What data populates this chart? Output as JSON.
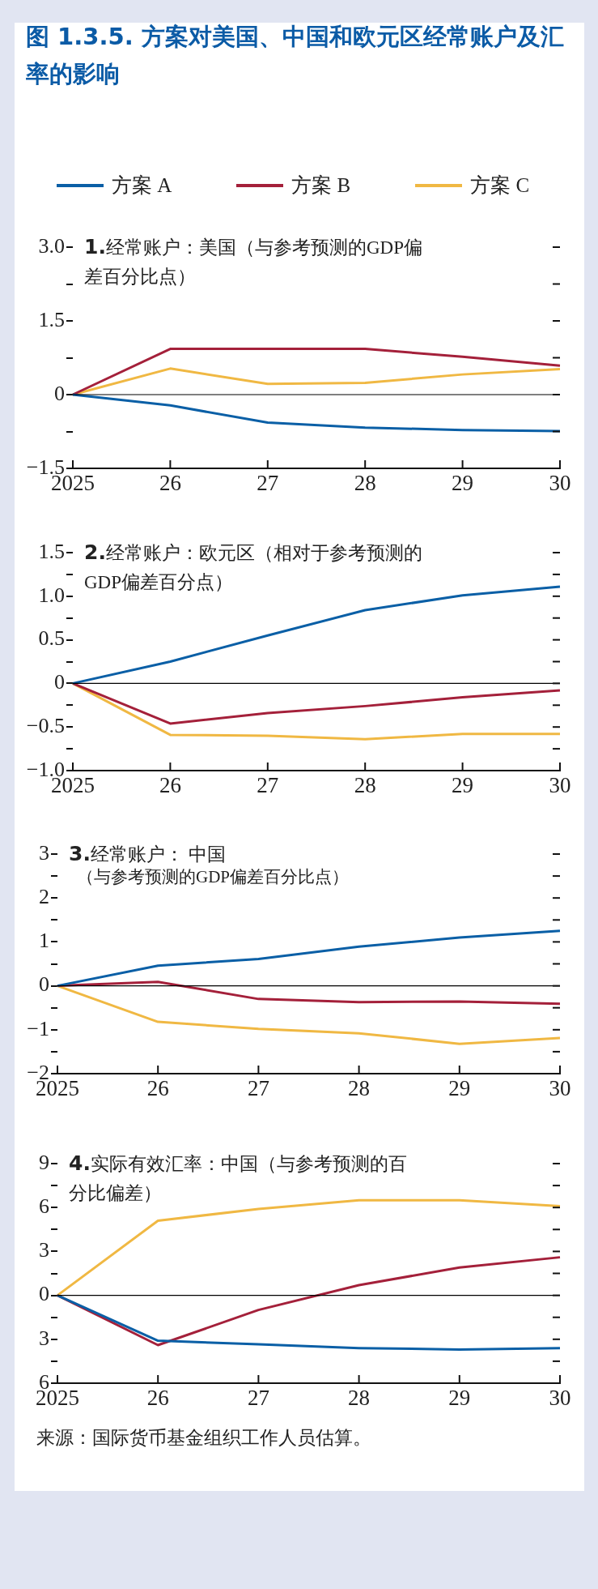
{
  "chart_data": [
    {
      "type": "line",
      "title": "图 1.3.5. 方案对美国、中国和欧元区经常账户及汇率的影响",
      "subtitle": "1.经常账户：美国（与参考预测的GDP偏差百分比点）",
      "legend": "top",
      "grid": false,
      "marker": "none",
      "line_style": "solid",
      "categories": [
        "2025",
        "26",
        "27",
        "28",
        "29",
        "30"
      ],
      "series": [
        {
          "name": "方案 A",
          "color": "#0a5fa6",
          "values": [
            0,
            -0.22,
            -0.57,
            -0.67,
            -0.72,
            -0.74
          ]
        },
        {
          "name": "方案 B",
          "color": "#a4203a",
          "values": [
            0,
            0.93,
            0.93,
            0.93,
            0.77,
            0.59
          ]
        },
        {
          "name": "方案 C",
          "color": "#f0b843",
          "values": [
            0,
            0.53,
            0.22,
            0.24,
            0.41,
            0.52
          ]
        }
      ],
      "ylim": [
        -1.5,
        3
      ],
      "yticks": [
        {
          "value": -1.5,
          "label": "−1.5"
        },
        {
          "value": -0.75,
          "label": null
        },
        {
          "value": 0,
          "label": "0"
        },
        {
          "value": 0.75,
          "label": null
        },
        {
          "value": 1.5,
          "label": "1.5"
        },
        {
          "value": 2.25,
          "label": null
        },
        {
          "value": 3,
          "label": "3.0"
        }
      ],
      "ref_lines": [
        {
          "axis": "y",
          "value": 0,
          "color": "#000000"
        }
      ]
    },
    {
      "type": "line",
      "subtitle": "2.经常账户：欧元区（相对于参考预测的GDP偏差百分点）",
      "legend": false,
      "grid": false,
      "marker": "none",
      "line_style": "solid",
      "categories": [
        "2025",
        "26",
        "27",
        "28",
        "29",
        "30"
      ],
      "series": [
        {
          "color": "#0a5fa6",
          "values": [
            0,
            0.25,
            0.55,
            0.84,
            1.01,
            1.11
          ]
        },
        {
          "color": "#a4203a",
          "values": [
            0,
            -0.46,
            -0.34,
            -0.26,
            -0.16,
            -0.08
          ]
        },
        {
          "color": "#f0b843",
          "values": [
            0,
            -0.59,
            -0.6,
            -0.64,
            -0.58,
            -0.58
          ]
        }
      ],
      "ylim": [
        -1,
        1.5
      ],
      "yticks": [
        {
          "value": -1,
          "label": "−1.0"
        },
        {
          "value": -0.75,
          "label": null
        },
        {
          "value": -0.5,
          "label": "−0.5"
        },
        {
          "value": -0.25,
          "label": null
        },
        {
          "value": 0,
          "label": "0"
        },
        {
          "value": 0.25,
          "label": null
        },
        {
          "value": 0.5,
          "label": "0.5"
        },
        {
          "value": 0.75,
          "label": null
        },
        {
          "value": 1,
          "label": "1.0"
        },
        {
          "value": 1.25,
          "label": null
        },
        {
          "value": 1.5,
          "label": "1.5"
        }
      ],
      "ref_lines": [
        {
          "axis": "y",
          "value": 0,
          "color": "#000000"
        }
      ]
    },
    {
      "type": "line",
      "subtitle": "3.经常账户： 中国",
      "annotations": [
        "（与参考预测的GDP偏差百分比点）"
      ],
      "legend": false,
      "grid": false,
      "marker": "none",
      "line_style": "solid",
      "categories": [
        "2025",
        "26",
        "27",
        "28",
        "29",
        "30"
      ],
      "series": [
        {
          "color": "#0a5fa6",
          "values": [
            0,
            0.46,
            0.61,
            0.89,
            1.1,
            1.25
          ]
        },
        {
          "color": "#a4203a",
          "values": [
            0,
            0.09,
            -0.3,
            -0.37,
            -0.36,
            -0.41
          ]
        },
        {
          "color": "#f0b843",
          "values": [
            0,
            -0.82,
            -0.98,
            -1.08,
            -1.32,
            -1.19
          ]
        }
      ],
      "ylim": [
        -2,
        3
      ],
      "yticks": [
        {
          "value": -2,
          "label": "−2"
        },
        {
          "value": -1.5,
          "label": null
        },
        {
          "value": -1,
          "label": "−1"
        },
        {
          "value": -0.5,
          "label": null
        },
        {
          "value": 0,
          "label": "0"
        },
        {
          "value": 0.5,
          "label": null
        },
        {
          "value": 1,
          "label": "1"
        },
        {
          "value": 1.5,
          "label": null
        },
        {
          "value": 2,
          "label": "2"
        },
        {
          "value": 2.5,
          "label": null
        },
        {
          "value": 3,
          "label": "3"
        }
      ],
      "ref_lines": [
        {
          "axis": "y",
          "value": 0,
          "color": "#000000"
        }
      ]
    },
    {
      "type": "line",
      "subtitle": "4.实际有效汇率：中国（与参考预测的百分比偏差）",
      "legend": false,
      "grid": false,
      "marker": "none",
      "line_style": "solid",
      "categories": [
        "2025",
        "26",
        "27",
        "28",
        "29",
        "30"
      ],
      "series": [
        {
          "color": "#0a5fa6",
          "values": [
            0,
            -3.1,
            -3.35,
            -3.6,
            -3.7,
            -3.6
          ]
        },
        {
          "color": "#a4203a",
          "values": [
            0,
            -3.4,
            -1,
            0.7,
            1.9,
            2.6
          ]
        },
        {
          "color": "#f0b843",
          "values": [
            0,
            5.1,
            5.9,
            6.5,
            6.5,
            6.1
          ]
        }
      ],
      "ylim": [
        -6,
        9
      ],
      "yticks": [
        {
          "value": -6,
          "label": "6"
        },
        {
          "value": -4.5,
          "label": null
        },
        {
          "value": -3,
          "label": "3"
        },
        {
          "value": -1.5,
          "label": null
        },
        {
          "value": 0,
          "label": "0"
        },
        {
          "value": 1.5,
          "label": null
        },
        {
          "value": 3,
          "label": "3"
        },
        {
          "value": 4.5,
          "label": null
        },
        {
          "value": 6,
          "label": "6"
        },
        {
          "value": 7.5,
          "label": null
        },
        {
          "value": 9,
          "label": "9"
        }
      ],
      "ref_lines": [
        {
          "axis": "y",
          "value": 0,
          "color": "#000000"
        }
      ],
      "annotations": [
        "来源：国际货币基金组织工作人员估算。"
      ]
    }
  ]
}
